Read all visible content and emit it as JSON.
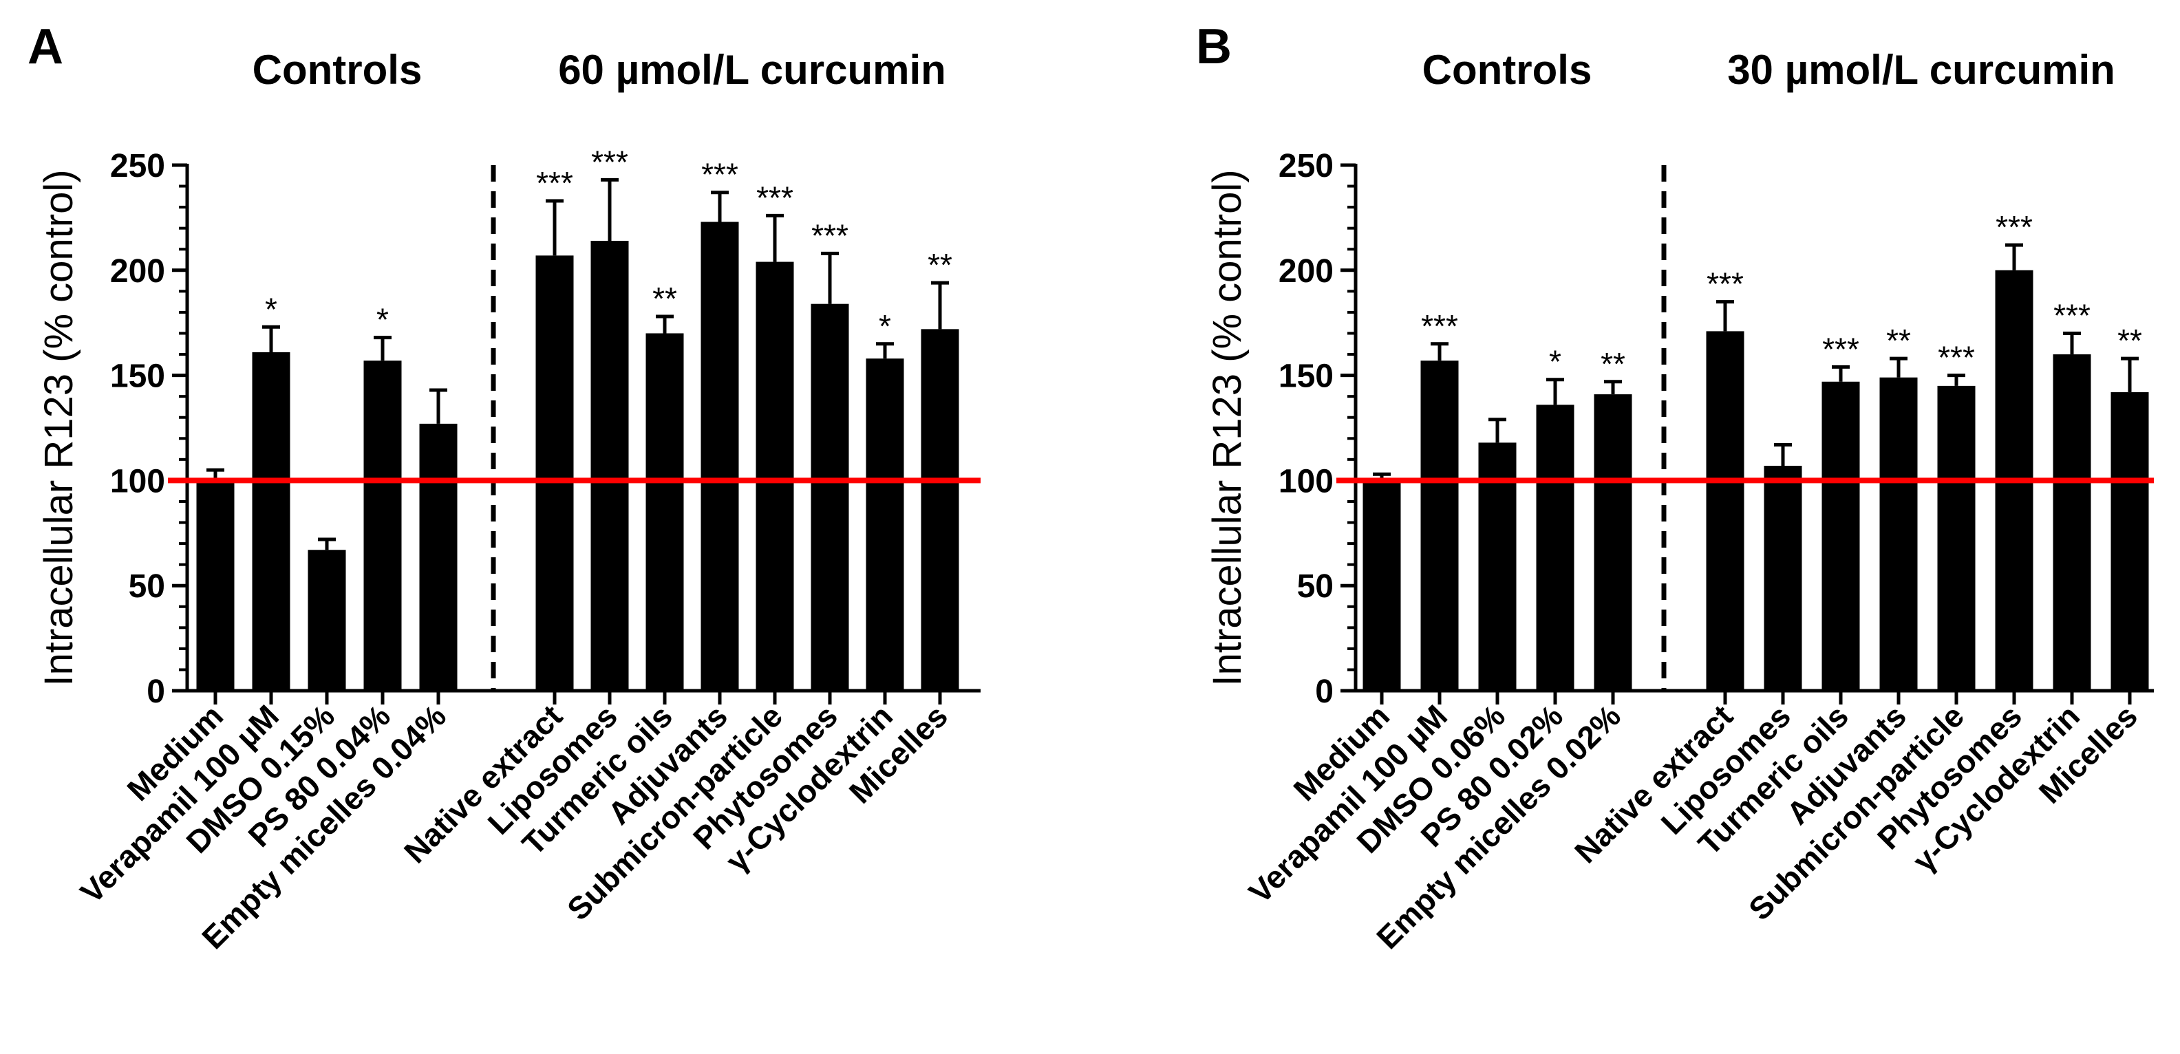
{
  "chart_data": [
    {
      "type": "bar",
      "panel": "A",
      "group_titles": [
        "Controls",
        "60 µmol/L curcumin"
      ],
      "ylabel": "Intracellular R123 (% control)",
      "ylim": [
        0,
        250
      ],
      "yticks": [
        "0",
        "50",
        "100",
        "150",
        "200",
        "250"
      ],
      "reference_line": 100,
      "reference_color": "#ff0000",
      "bar_color": "#000000",
      "control_categories": [
        "Medium",
        "Verapamil 100 µM",
        "DMSO 0.15%",
        "PS 80 0.04%",
        "Empty micelles 0.04%"
      ],
      "control_values": [
        99,
        161,
        67,
        157,
        127
      ],
      "control_errors": [
        6,
        12,
        5,
        11,
        16
      ],
      "control_significance": [
        "",
        "*",
        "",
        "*",
        ""
      ],
      "treatment_categories": [
        "Native extract",
        "Liposomes",
        "Turmeric oils",
        "Adjuvants",
        "Submicron-particle",
        "Phytosomes",
        "γ-Cyclodextrin",
        "Micelles"
      ],
      "treatment_values": [
        207,
        214,
        170,
        223,
        204,
        184,
        158,
        172
      ],
      "treatment_errors": [
        26,
        29,
        8,
        14,
        22,
        24,
        7,
        22
      ],
      "treatment_significance": [
        "***",
        "***",
        "**",
        "***",
        "***",
        "***",
        "*",
        "**"
      ]
    },
    {
      "type": "bar",
      "panel": "B",
      "group_titles": [
        "Controls",
        "30 µmol/L curcumin"
      ],
      "ylabel": "Intracellular R123 (% control)",
      "ylim": [
        0,
        250
      ],
      "yticks": [
        "0",
        "50",
        "100",
        "150",
        "200",
        "250"
      ],
      "reference_line": 100,
      "reference_color": "#ff0000",
      "bar_color": "#000000",
      "control_categories": [
        "Medium",
        "Verapamil 100 µM",
        "DMSO 0.06%",
        "PS 80 0.02%",
        "Empty micelles 0.02%"
      ],
      "control_values": [
        100,
        157,
        118,
        136,
        141
      ],
      "control_errors": [
        3,
        8,
        11,
        12,
        6
      ],
      "control_significance": [
        "",
        "***",
        "",
        "*",
        "**"
      ],
      "treatment_categories": [
        "Native extract",
        "Liposomes",
        "Turmeric oils",
        "Adjuvants",
        "Submicron-particle",
        "Phytosomes",
        "γ-Cyclodextrin",
        "Micelles"
      ],
      "treatment_values": [
        171,
        107,
        147,
        149,
        145,
        200,
        160,
        142
      ],
      "treatment_errors": [
        14,
        10,
        7,
        9,
        5,
        12,
        10,
        16
      ],
      "treatment_significance": [
        "***",
        "",
        "***",
        "**",
        "***",
        "***",
        "***",
        "**"
      ]
    }
  ]
}
